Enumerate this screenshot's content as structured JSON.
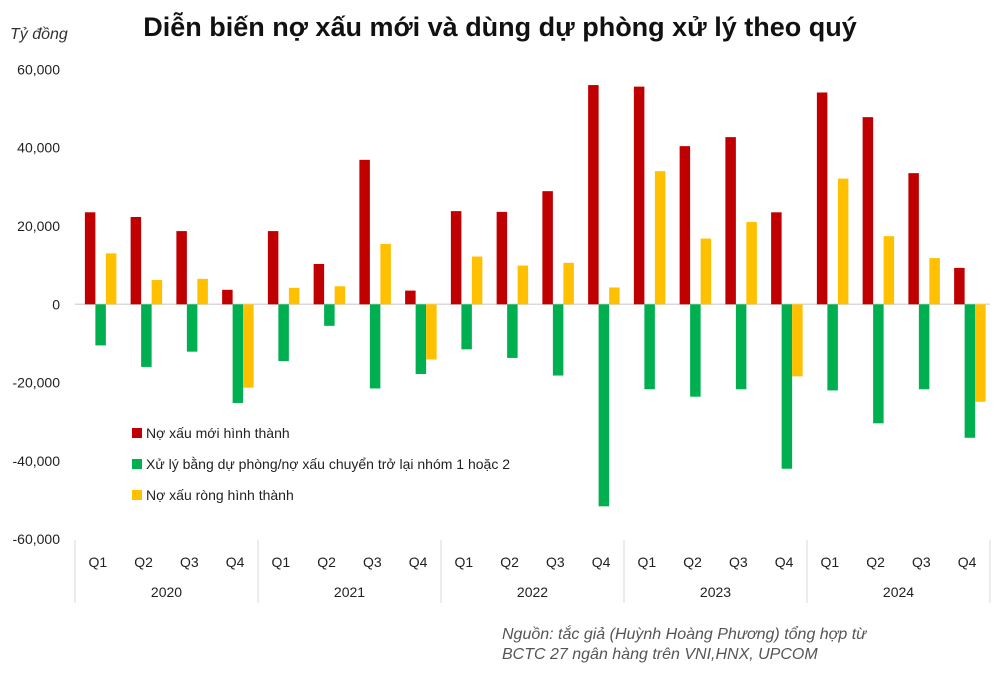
{
  "title": "Diễn biến nợ xấu mới và dùng dự phòng xử lý theo quý",
  "unit": "Tỷ đồng",
  "source": [
    "Nguồn: tắc giả (Huỳnh Hoàng Phương) tổng hợp từ",
    "BCTC 27 ngân hàng trên VNI,HNX, UPCOM"
  ],
  "chart_data": {
    "type": "bar",
    "title": "Diễn biến nợ xấu mới và dùng dự phòng xử lý theo quý",
    "ylabel": "Tỷ đồng",
    "ylim": [
      -60000,
      60000
    ],
    "yticks": [
      60000,
      40000,
      20000,
      0,
      -20000,
      -40000,
      -60000
    ],
    "ytick_labels": [
      "60,000",
      "40,000",
      "20,000",
      "0",
      "-20,000",
      "-40,000",
      "-60,000"
    ],
    "grid": false,
    "legend_position": "lower-left",
    "groups": [
      "2020",
      "2021",
      "2022",
      "2023",
      "2024"
    ],
    "quarters": [
      "Q1",
      "Q2",
      "Q3",
      "Q4"
    ],
    "series": [
      {
        "name": "Nợ xấu mới hình thành",
        "color": "#C00000",
        "values": [
          23500,
          22300,
          18700,
          3700,
          18700,
          10300,
          36900,
          3500,
          23800,
          23600,
          28900,
          56000,
          55600,
          40400,
          42700,
          23500,
          54100,
          47800,
          33500,
          9300
        ]
      },
      {
        "name": "Xử lý bằng dự phòng/nợ xấu chuyển trở lại nhóm 1 hoặc 2",
        "color": "#00B050",
        "values": [
          -10500,
          -16000,
          -12100,
          -25200,
          -14500,
          -5500,
          -21500,
          -17800,
          -11500,
          -13700,
          -18200,
          -51600,
          -21700,
          -23600,
          -21700,
          -42000,
          -22000,
          -30400,
          -21700,
          -34100
        ]
      },
      {
        "name": "Nợ xấu ròng hình thành",
        "color": "#FFC000",
        "values": [
          13000,
          6200,
          6500,
          -21300,
          4200,
          4600,
          15400,
          -14100,
          12200,
          9900,
          10600,
          4300,
          34000,
          16800,
          21000,
          -18400,
          32100,
          17400,
          11800,
          -24900
        ]
      }
    ]
  }
}
